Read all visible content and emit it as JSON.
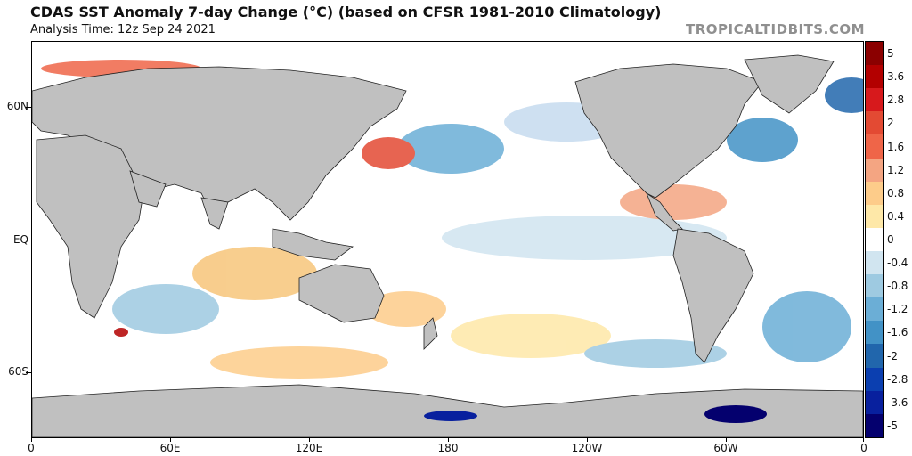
{
  "header": {
    "title": "CDAS SST Anomaly 7-day Change (°C) (based on CFSR 1981-2010 Climatology)",
    "analysis_time": "Analysis Time: 12z Sep 24 2021",
    "watermark": "TROPICALTIDBITS.COM"
  },
  "axes": {
    "lat_labels": [
      "60N",
      "EQ",
      "60S"
    ],
    "lon_labels": [
      "0",
      "60E",
      "120E",
      "180",
      "120W",
      "60W",
      "0"
    ]
  },
  "colorbar": {
    "labels": [
      "5",
      "3.6",
      "2.8",
      "2",
      "1.6",
      "1.2",
      "0.8",
      "0.4",
      "0",
      "-0.4",
      "-0.8",
      "-1.2",
      "-1.6",
      "-2",
      "-2.8",
      "-3.6",
      "-5"
    ],
    "colors": [
      "#8b0000",
      "#b30000",
      "#d7191c",
      "#e34a33",
      "#ef6548",
      "#f4a582",
      "#fdcc8a",
      "#fee8a8",
      "#ffffff",
      "#d1e5f0",
      "#9ecae1",
      "#6baed6",
      "#4292c6",
      "#2166ac",
      "#0b3fb0",
      "#08209e",
      "#04006e"
    ]
  },
  "map_colors": {
    "land": "#c0c0c0",
    "ocean_base": "#ffffff",
    "warm": "#f7c57a",
    "cool": "#a8d0ee"
  }
}
